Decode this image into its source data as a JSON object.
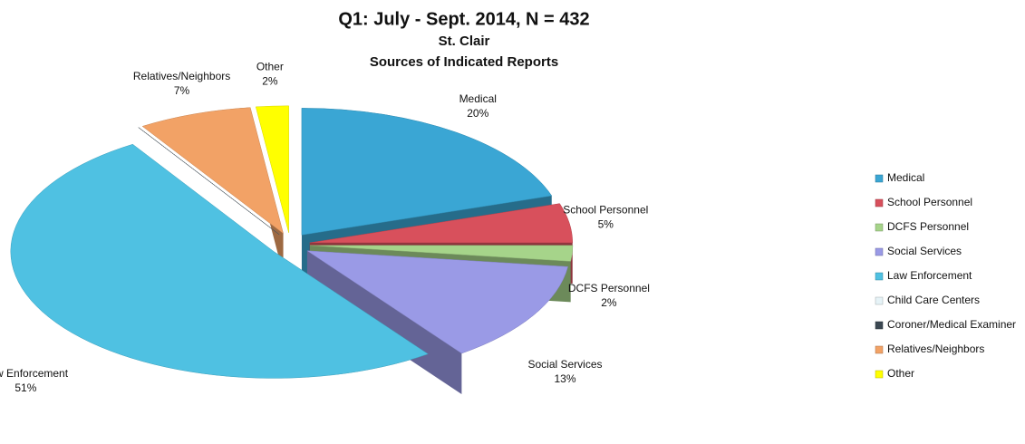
{
  "chart_data": {
    "type": "pie",
    "title": "Q1: July - Sept. 2014, N = 432",
    "subtitle": "St. Clair",
    "subtitle2": "Sources of Indicated Reports",
    "categories": [
      "Medical",
      "School Personnel",
      "DCFS Personnel",
      "Social Services",
      "Law Enforcement",
      "Child Care Centers",
      "Coroner/Medical Examiner",
      "Relatives/Neighbors",
      "Other"
    ],
    "values": [
      20,
      5,
      2,
      13,
      51,
      0,
      0,
      7,
      2
    ],
    "value_labels": [
      "20%",
      "5%",
      "2%",
      "13%",
      "51%",
      null,
      null,
      "7%",
      "2%"
    ],
    "colors": [
      "#3aa6d4",
      "#d8505c",
      "#a6d48a",
      "#9a9ae6",
      "#4fc1e2",
      "#e6f3f7",
      "#3b4852",
      "#f2a266",
      "#ffff00"
    ],
    "legend": "right"
  }
}
